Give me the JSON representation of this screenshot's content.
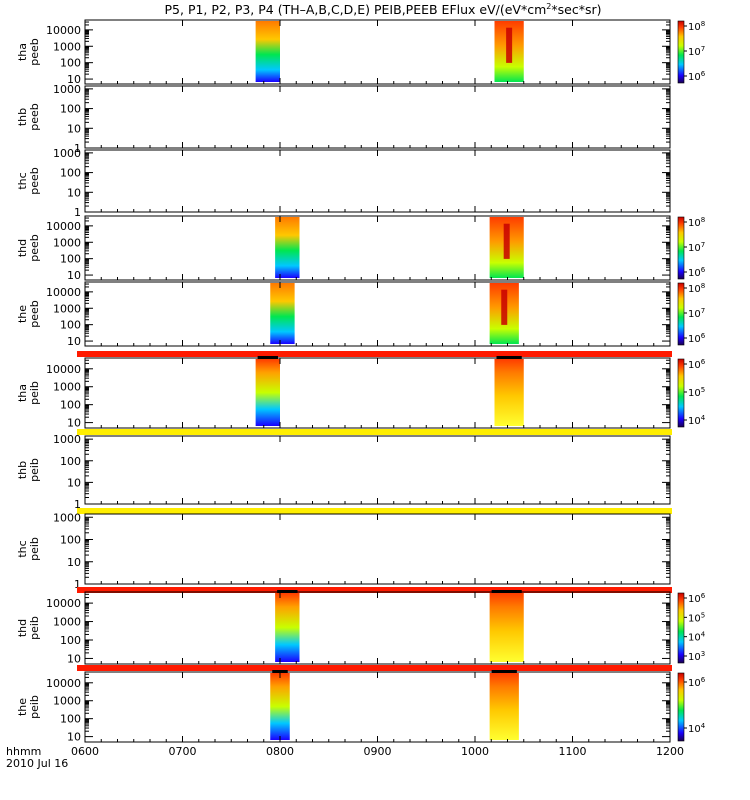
{
  "chart_data": {
    "type": "heatmap",
    "title": "P5, P1, P2, P3, P4 (TH–A,B,C,D,E) PEIB,PEEB EFlux eV/(eV*cm",
    "title_sup": "2",
    "title_tail": "*sec*sr)",
    "x_ticks": [
      "0600",
      "0700",
      "0800",
      "0900",
      "1000",
      "1100",
      "1200"
    ],
    "x_range_hours": [
      6,
      12
    ],
    "x_label": "hhmm",
    "date_label": "2010 Jul 16",
    "panels": [
      {
        "probe": "tha",
        "instrument": "peeb",
        "yticks": [
          "10000",
          "1000",
          "100",
          "10"
        ],
        "y_range": [
          5,
          40000
        ],
        "bursts": [
          [
            7.75,
            8.0
          ],
          [
            10.2,
            10.5
          ]
        ],
        "colorbar": [
          "10",
          "10",
          "10"
        ],
        "colorbar_exp": [
          "8",
          "7",
          "6"
        ],
        "fill": "electron"
      },
      {
        "probe": "thb",
        "instrument": "peeb",
        "yticks": [
          "1000",
          "100",
          "10",
          "1"
        ],
        "y_range": [
          1,
          1400
        ],
        "bursts": [],
        "colorbar": [],
        "colorbar_exp": [],
        "fill": "none"
      },
      {
        "probe": "thc",
        "instrument": "peeb",
        "yticks": [
          "1000",
          "100",
          "10",
          "1"
        ],
        "y_range": [
          1,
          1400
        ],
        "bursts": [],
        "colorbar": [],
        "colorbar_exp": [],
        "fill": "none"
      },
      {
        "probe": "thd",
        "instrument": "peeb",
        "yticks": [
          "10000",
          "1000",
          "100",
          "10"
        ],
        "y_range": [
          5,
          40000
        ],
        "bursts": [
          [
            7.95,
            8.2
          ],
          [
            10.15,
            10.5
          ]
        ],
        "colorbar": [
          "10",
          "10",
          "10"
        ],
        "colorbar_exp": [
          "8",
          "7",
          "6"
        ],
        "fill": "electron"
      },
      {
        "probe": "the",
        "instrument": "peeb",
        "yticks": [
          "10000",
          "1000",
          "100",
          "10"
        ],
        "y_range": [
          5,
          40000
        ],
        "bursts": [
          [
            7.9,
            8.15
          ],
          [
            10.15,
            10.45
          ]
        ],
        "colorbar": [
          "10",
          "10",
          "10"
        ],
        "colorbar_exp": [
          "8",
          "7",
          "6"
        ],
        "fill": "electron"
      },
      {
        "probe": "tha",
        "instrument": "peib",
        "yticks": [
          "10000",
          "1000",
          "100",
          "10"
        ],
        "y_range": [
          5,
          40000
        ],
        "bursts": [
          [
            7.75,
            8.0
          ],
          [
            10.2,
            10.5
          ]
        ],
        "colorbar": [
          "10",
          "10",
          "10"
        ],
        "colorbar_exp": [
          "6",
          "5",
          "4"
        ],
        "fill": "ion",
        "band_color": "#ff1a00"
      },
      {
        "probe": "thb",
        "instrument": "peib",
        "yticks": [
          "1000",
          "100",
          "10",
          "1"
        ],
        "y_range": [
          1,
          1400
        ],
        "bursts": [],
        "colorbar": [],
        "colorbar_exp": [],
        "fill": "none",
        "band_color": "#ffee00"
      },
      {
        "probe": "thc",
        "instrument": "peib",
        "yticks": [
          "1000",
          "100",
          "10",
          "1"
        ],
        "y_range": [
          1,
          1400
        ],
        "bursts": [],
        "colorbar": [],
        "colorbar_exp": [],
        "fill": "none",
        "band_color": "#ffee00"
      },
      {
        "probe": "thd",
        "instrument": "peib",
        "yticks": [
          "10000",
          "1000",
          "100",
          "10"
        ],
        "y_range": [
          5,
          40000
        ],
        "bursts": [
          [
            7.95,
            8.2
          ],
          [
            10.15,
            10.5
          ]
        ],
        "colorbar": [
          "10",
          "10",
          "10",
          "10"
        ],
        "colorbar_exp": [
          "6",
          "5",
          "4",
          "3"
        ],
        "fill": "ion",
        "band_color": "#ff1a00"
      },
      {
        "probe": "the",
        "instrument": "peib",
        "yticks": [
          "10000",
          "1000",
          "100",
          "10"
        ],
        "y_range": [
          5,
          40000
        ],
        "bursts": [
          [
            7.9,
            8.1
          ],
          [
            10.15,
            10.45
          ]
        ],
        "colorbar": [
          "10",
          "10"
        ],
        "colorbar_exp": [
          "6",
          "4"
        ],
        "fill": "ion",
        "band_color": "#ff1a00"
      }
    ]
  }
}
